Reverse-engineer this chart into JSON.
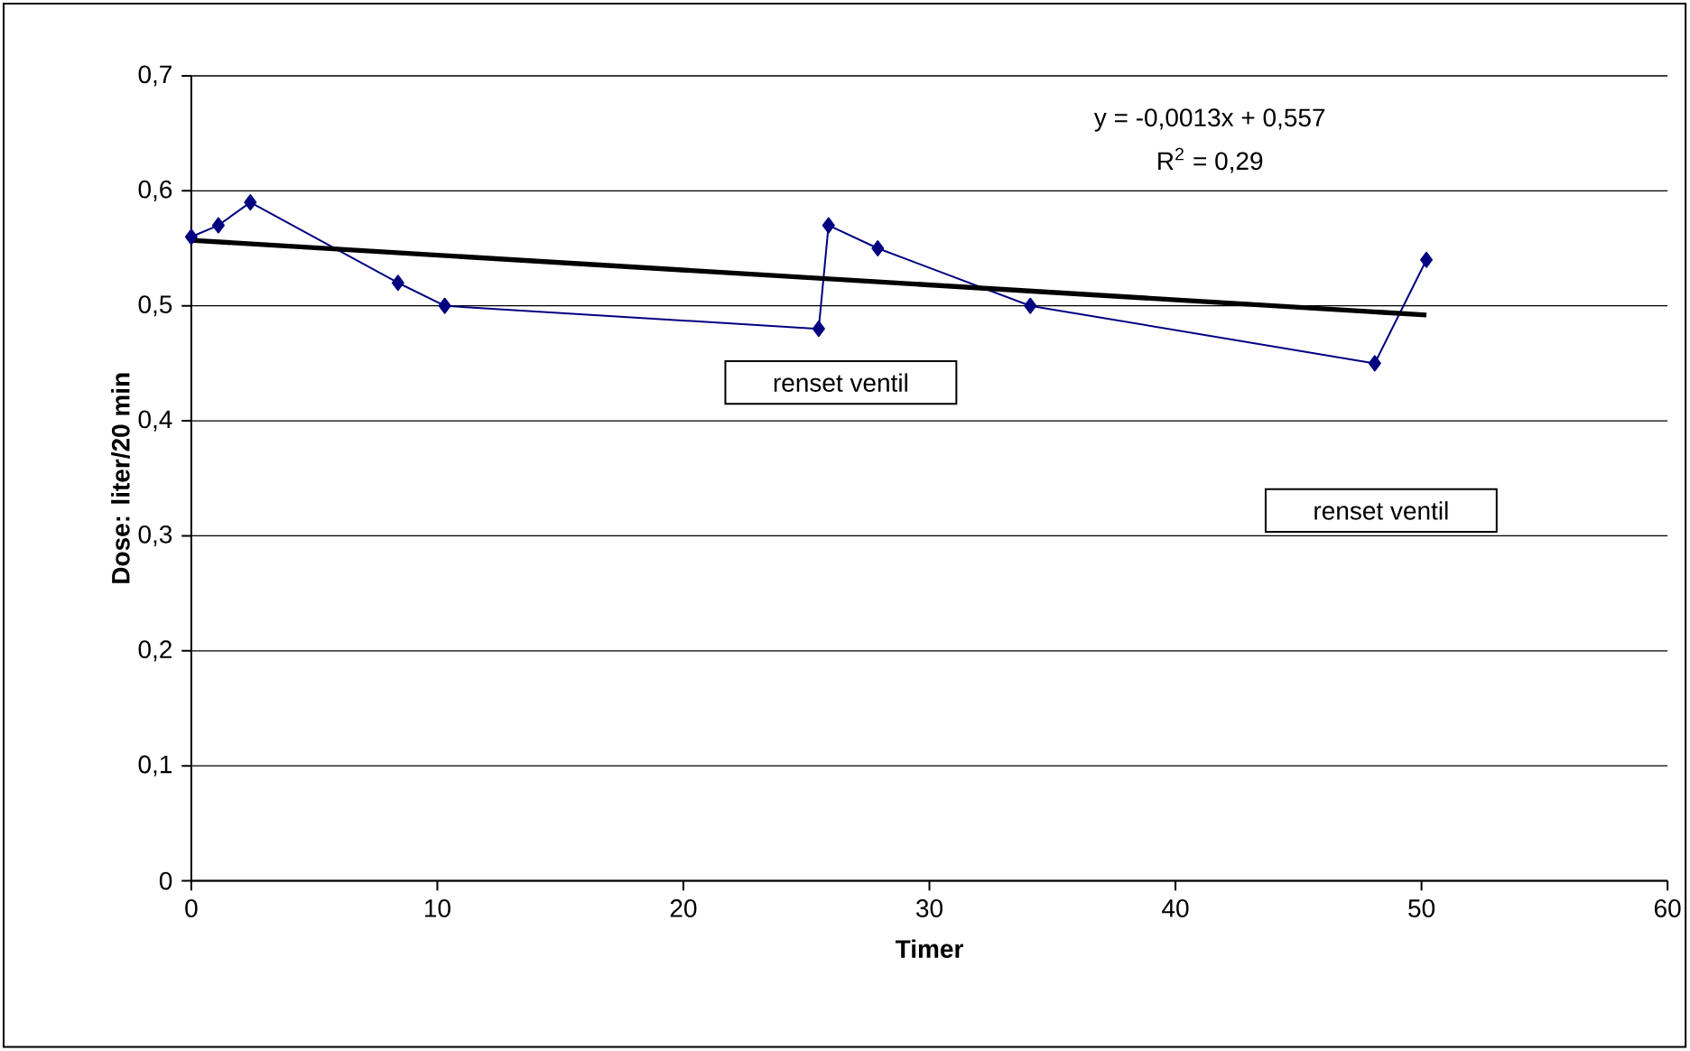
{
  "chart_data": {
    "type": "line",
    "xlabel": "Timer",
    "ylabel": "Dose: liter/20 min",
    "xlim": [
      0,
      60
    ],
    "xticks": [
      0,
      10,
      20,
      30,
      40,
      50,
      60
    ],
    "ylim": [
      0,
      0.7
    ],
    "yticks": [
      0,
      {
        "value": 0.1,
        "label": "0,1"
      },
      {
        "value": 0.2,
        "label": "0,2"
      },
      {
        "value": 0.3,
        "label": "0,3"
      },
      {
        "value": 0.4,
        "label": "0,4"
      },
      {
        "value": 0.5,
        "label": "0,5"
      },
      {
        "value": 0.6,
        "label": "0,6"
      },
      {
        "value": 0.7,
        "label": "0,7"
      }
    ],
    "grid": "y",
    "marker": "diamond",
    "series": [
      {
        "color": "#000080",
        "x": [
          0,
          1.1,
          2.4,
          8.4,
          10.3,
          25.5,
          25.9,
          27.9,
          34.1,
          48.1,
          50.2
        ],
        "values": [
          0.56,
          0.57,
          0.59,
          0.52,
          0.5,
          0.48,
          0.57,
          0.55,
          0.5,
          0.45,
          0.54
        ]
      },
      {
        "type": "line",
        "color": "#000000",
        "marker": "none",
        "x": [
          0,
          50.2
        ],
        "values": [
          0.557,
          0.492
        ]
      }
    ],
    "annotations": [
      "y = -0,0013x + 0,557",
      "R$^{2}$ = 0,29",
      "renset ventil",
      "renset ventil"
    ]
  }
}
